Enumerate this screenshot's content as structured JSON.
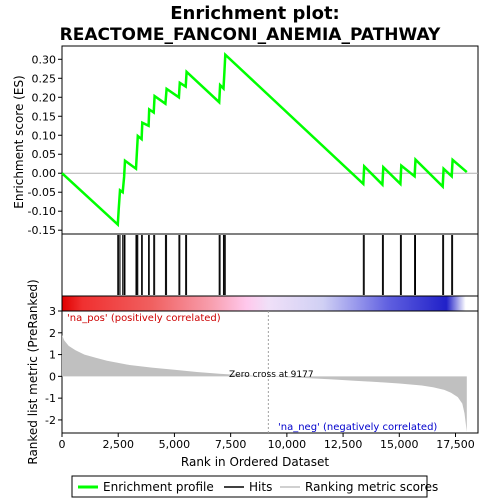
{
  "chart_data": {
    "type": "line",
    "title_line1": "Enrichment plot:",
    "title_line2": "REACTOME_FANCONI_ANEMIA_PATHWAY",
    "es_panel": {
      "ylabel": "Enrichment score (ES)",
      "ylim": [
        -0.16,
        0.335
      ],
      "yticks": [
        "0.30",
        "0.25",
        "0.20",
        "0.15",
        "0.10",
        "0.05",
        "0.00",
        "-0.05",
        "-0.10",
        "-0.15"
      ],
      "ytick_values": [
        0.3,
        0.25,
        0.2,
        0.15,
        0.1,
        0.05,
        0.0,
        -0.05,
        -0.1,
        -0.15
      ],
      "series": [
        {
          "name": "Enrichment profile",
          "color": "#00ff00",
          "x": [
            0,
            2480,
            2520,
            2580,
            2700,
            2760,
            2800,
            3290,
            3330,
            3370,
            3540,
            3570,
            3850,
            3880,
            4080,
            4120,
            4600,
            4650,
            5200,
            5240,
            5500,
            5540,
            6990,
            7030,
            7180,
            7220,
            7260,
            13400,
            13440,
            14250,
            14290,
            15050,
            15090,
            15680,
            15720,
            16930,
            16970,
            17330,
            17370,
            18000
          ],
          "y": [
            0.0,
            -0.135,
            -0.095,
            -0.045,
            -0.05,
            -0.01,
            0.033,
            0.012,
            0.055,
            0.098,
            0.09,
            0.133,
            0.125,
            0.168,
            0.16,
            0.203,
            0.183,
            0.222,
            0.2,
            0.238,
            0.228,
            0.267,
            0.187,
            0.232,
            0.223,
            0.266,
            0.312,
            -0.028,
            0.018,
            -0.03,
            0.016,
            -0.028,
            0.02,
            -0.008,
            0.036,
            -0.035,
            0.012,
            -0.008,
            0.035,
            0.003
          ]
        }
      ]
    },
    "hits": {
      "name": "Hits",
      "positions": [
        2480,
        2520,
        2580,
        2700,
        2760,
        2800,
        3290,
        3330,
        3370,
        3540,
        3570,
        3850,
        3880,
        4080,
        4120,
        4600,
        4650,
        5200,
        5240,
        5500,
        5540,
        6990,
        7030,
        7180,
        7220,
        7260,
        13400,
        13440,
        14250,
        14290,
        15050,
        15090,
        15680,
        15720,
        16930,
        16970,
        17330,
        17370
      ]
    },
    "rank_panel": {
      "name": "Ranking metric scores",
      "ylabel": "Ranked list metric (PreRanked)",
      "ylim": [
        -2.6,
        3.0
      ],
      "yticks": [
        "3",
        "2",
        "1",
        "0",
        "-1",
        "-2"
      ],
      "ytick_values": [
        3,
        2,
        1,
        0,
        -1,
        -2
      ],
      "x": [
        0,
        100,
        300,
        600,
        1000,
        1500,
        2000,
        2500,
        3000,
        4000,
        5000,
        6000,
        7000,
        8000,
        9177,
        10000,
        11000,
        12000,
        13000,
        14000,
        15000,
        16000,
        16500,
        17000,
        17300,
        17600,
        17800,
        17900,
        18000
      ],
      "y": [
        1.9,
        1.65,
        1.4,
        1.2,
        1.0,
        0.85,
        0.72,
        0.62,
        0.52,
        0.4,
        0.3,
        0.2,
        0.12,
        0.06,
        0.0,
        -0.04,
        -0.09,
        -0.14,
        -0.2,
        -0.26,
        -0.33,
        -0.42,
        -0.5,
        -0.62,
        -0.75,
        -0.95,
        -1.25,
        -1.7,
        -2.55
      ],
      "color": "#c0c0c0",
      "pos_label": "'na_pos' (positively correlated)",
      "neg_label": "'na_neg' (negatively correlated)",
      "zero_cross_label": "Zero cross at 9177",
      "zero_cross": 9177
    },
    "xlabel": "Rank in Ordered Dataset",
    "xlim": [
      0,
      18500
    ],
    "xticks": [
      "0",
      "2,500",
      "5,000",
      "7,500",
      "10,000",
      "12,500",
      "15,000",
      "17,500"
    ],
    "xtick_values": [
      0,
      2500,
      5000,
      7500,
      10000,
      12500,
      15000,
      17500
    ],
    "legend": {
      "placement": "bottom",
      "items": [
        {
          "label": "Enrichment profile",
          "color": "#00ff00"
        },
        {
          "label": "Hits",
          "color": "#000000"
        },
        {
          "label": "Ranking metric scores",
          "color": "#c0c0c0"
        }
      ]
    },
    "colorbar": {
      "stops": [
        {
          "x": 0,
          "color": "#e00000"
        },
        {
          "x": 900,
          "color": "#f03030"
        },
        {
          "x": 4000,
          "color": "#f06060"
        },
        {
          "x": 6700,
          "color": "#f8a0b0"
        },
        {
          "x": 8200,
          "color": "#ffc8ec"
        },
        {
          "x": 9177,
          "color": "#f0e0f8"
        },
        {
          "x": 11600,
          "color": "#d0d0f4"
        },
        {
          "x": 13100,
          "color": "#9898ec"
        },
        {
          "x": 14500,
          "color": "#6060e0"
        },
        {
          "x": 17100,
          "color": "#2020c8"
        },
        {
          "x": 17950,
          "color": "#ffffff"
        }
      ]
    }
  }
}
